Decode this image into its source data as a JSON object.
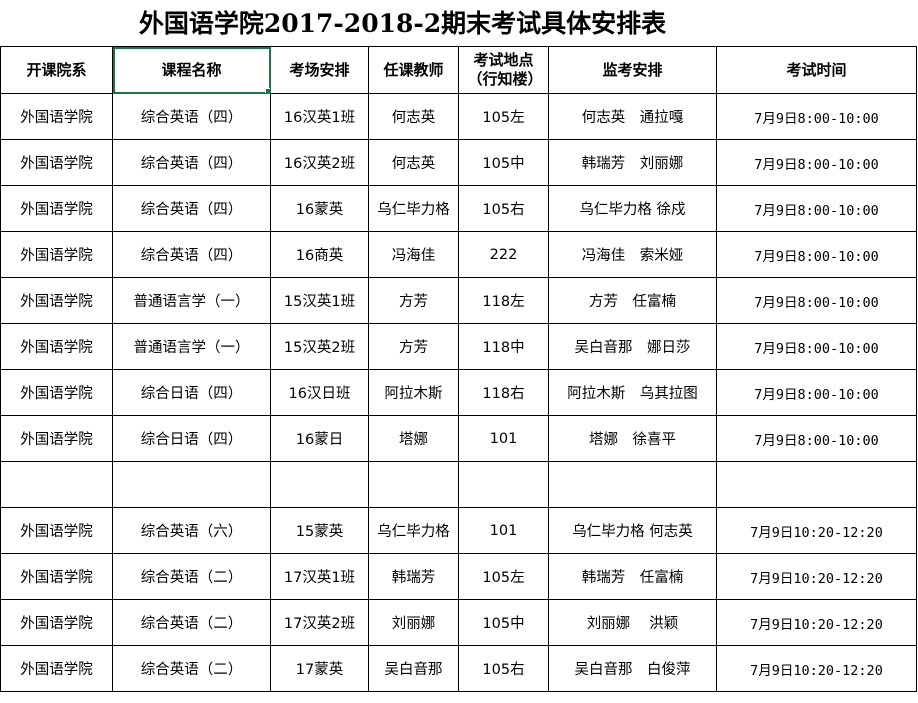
{
  "title": "外国语学院2017-2018-2期末考试具体安排表",
  "headers": [
    "开课院系",
    "课程名称",
    "考场安排",
    "任课教师",
    "考试地点（行知楼）",
    "监考安排",
    "考试时间"
  ],
  "rows": [
    [
      "外国语学院",
      "综合英语（四）",
      "16汉英1班",
      "何志英",
      "105左",
      "何志英　通拉嘎",
      "7月9日8:00-10:00"
    ],
    [
      "外国语学院",
      "综合英语（四）",
      "16汉英2班",
      "何志英",
      "105中",
      "韩瑞芳　刘丽娜",
      "7月9日8:00-10:00"
    ],
    [
      "外国语学院",
      "综合英语（四）",
      "16蒙英",
      "乌仁毕力格",
      "105右",
      "乌仁毕力格 徐戍",
      "7月9日8:00-10:00"
    ],
    [
      "外国语学院",
      "综合英语（四）",
      "16商英",
      "冯海佳",
      "222",
      "冯海佳　索米娅",
      "7月9日8:00-10:00"
    ],
    [
      "外国语学院",
      "普通语言学（一）",
      "15汉英1班",
      "方芳",
      "118左",
      "方芳　任富楠",
      "7月9日8:00-10:00"
    ],
    [
      "外国语学院",
      "普通语言学（一）",
      "15汉英2班",
      "方芳",
      "118中",
      "吴白音那　娜日莎",
      "7月9日8:00-10:00"
    ],
    [
      "外国语学院",
      "综合日语（四）",
      "16汉日班",
      "阿拉木斯",
      "118右",
      "阿拉木斯　乌其拉图",
      "7月9日8:00-10:00"
    ],
    [
      "外国语学院",
      "综合日语（四）",
      "16蒙日",
      "塔娜",
      "101",
      "塔娜　徐喜平",
      "7月9日8:00-10:00"
    ],
    [
      "",
      "",
      "",
      "",
      "",
      "",
      ""
    ],
    [
      "外国语学院",
      "综合英语（六）",
      "15蒙英",
      "乌仁毕力格",
      "101",
      "乌仁毕力格 何志英",
      "7月9日10:20-12:20"
    ],
    [
      "外国语学院",
      "综合英语（二）",
      "17汉英1班",
      "韩瑞芳",
      "105左",
      "韩瑞芳　任富楠",
      "7月9日10:20-12:20"
    ],
    [
      "外国语学院",
      "综合英语（二）",
      "17汉英2班",
      "刘丽娜",
      "105中",
      "刘丽娜　 洪颖",
      "7月9日10:20-12:20"
    ],
    [
      "外国语学院",
      "综合英语（二）",
      "17蒙英",
      "吴白音那",
      "105右",
      "吴白音那　白俊萍",
      "7月9日10:20-12:20"
    ]
  ],
  "selection_color": "#217346"
}
